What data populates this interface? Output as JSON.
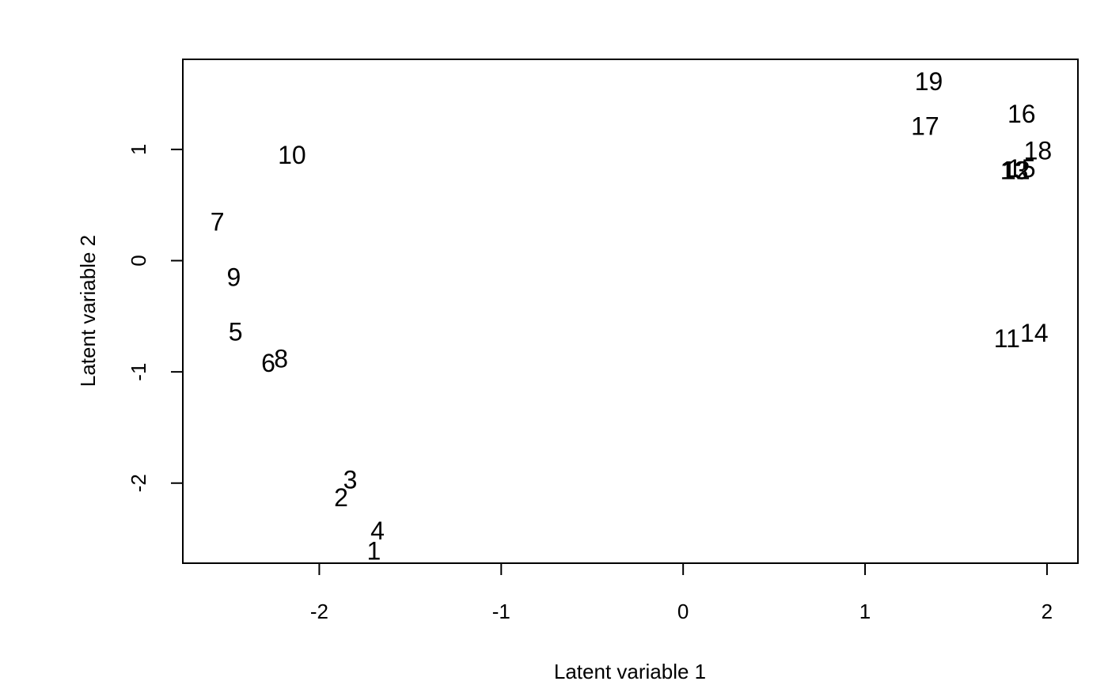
{
  "chart_data": {
    "type": "scatter",
    "title": "",
    "xlabel": "Latent variable  1",
    "ylabel": "Latent variable  2",
    "xlim": [
      -2.75,
      2.17
    ],
    "ylim": [
      -2.72,
      1.81
    ],
    "xticks": [
      -2,
      -1,
      0,
      1,
      2
    ],
    "yticks": [
      -2,
      -1,
      0,
      1
    ],
    "xtick_labels": [
      "-2",
      "-1",
      "0",
      "1",
      "2"
    ],
    "ytick_labels": [
      "-2",
      "-1",
      "0",
      "1"
    ],
    "grid": false,
    "points": [
      {
        "label": "1",
        "x": -1.7,
        "y": -2.61
      },
      {
        "label": "2",
        "x": -1.88,
        "y": -2.13
      },
      {
        "label": "3",
        "x": -1.83,
        "y": -1.97
      },
      {
        "label": "4",
        "x": -1.68,
        "y": -2.43
      },
      {
        "label": "5",
        "x": -2.46,
        "y": -0.64
      },
      {
        "label": "6",
        "x": -2.28,
        "y": -0.92
      },
      {
        "label": "7",
        "x": -2.56,
        "y": 0.35
      },
      {
        "label": "8",
        "x": -2.21,
        "y": -0.88
      },
      {
        "label": "9",
        "x": -2.47,
        "y": -0.15
      },
      {
        "label": "10",
        "x": -2.15,
        "y": 0.95
      },
      {
        "label": "11",
        "x": 1.78,
        "y": -0.7
      },
      {
        "label": "12",
        "x": 1.83,
        "y": 0.81
      },
      {
        "label": "13",
        "x": 1.82,
        "y": 0.81
      },
      {
        "label": "14",
        "x": 1.93,
        "y": -0.65
      },
      {
        "label": "15",
        "x": 1.86,
        "y": 0.83
      },
      {
        "label": "16",
        "x": 1.86,
        "y": 1.32
      },
      {
        "label": "17",
        "x": 1.33,
        "y": 1.21
      },
      {
        "label": "18",
        "x": 1.95,
        "y": 0.99
      },
      {
        "label": "19",
        "x": 1.35,
        "y": 1.61
      }
    ]
  }
}
